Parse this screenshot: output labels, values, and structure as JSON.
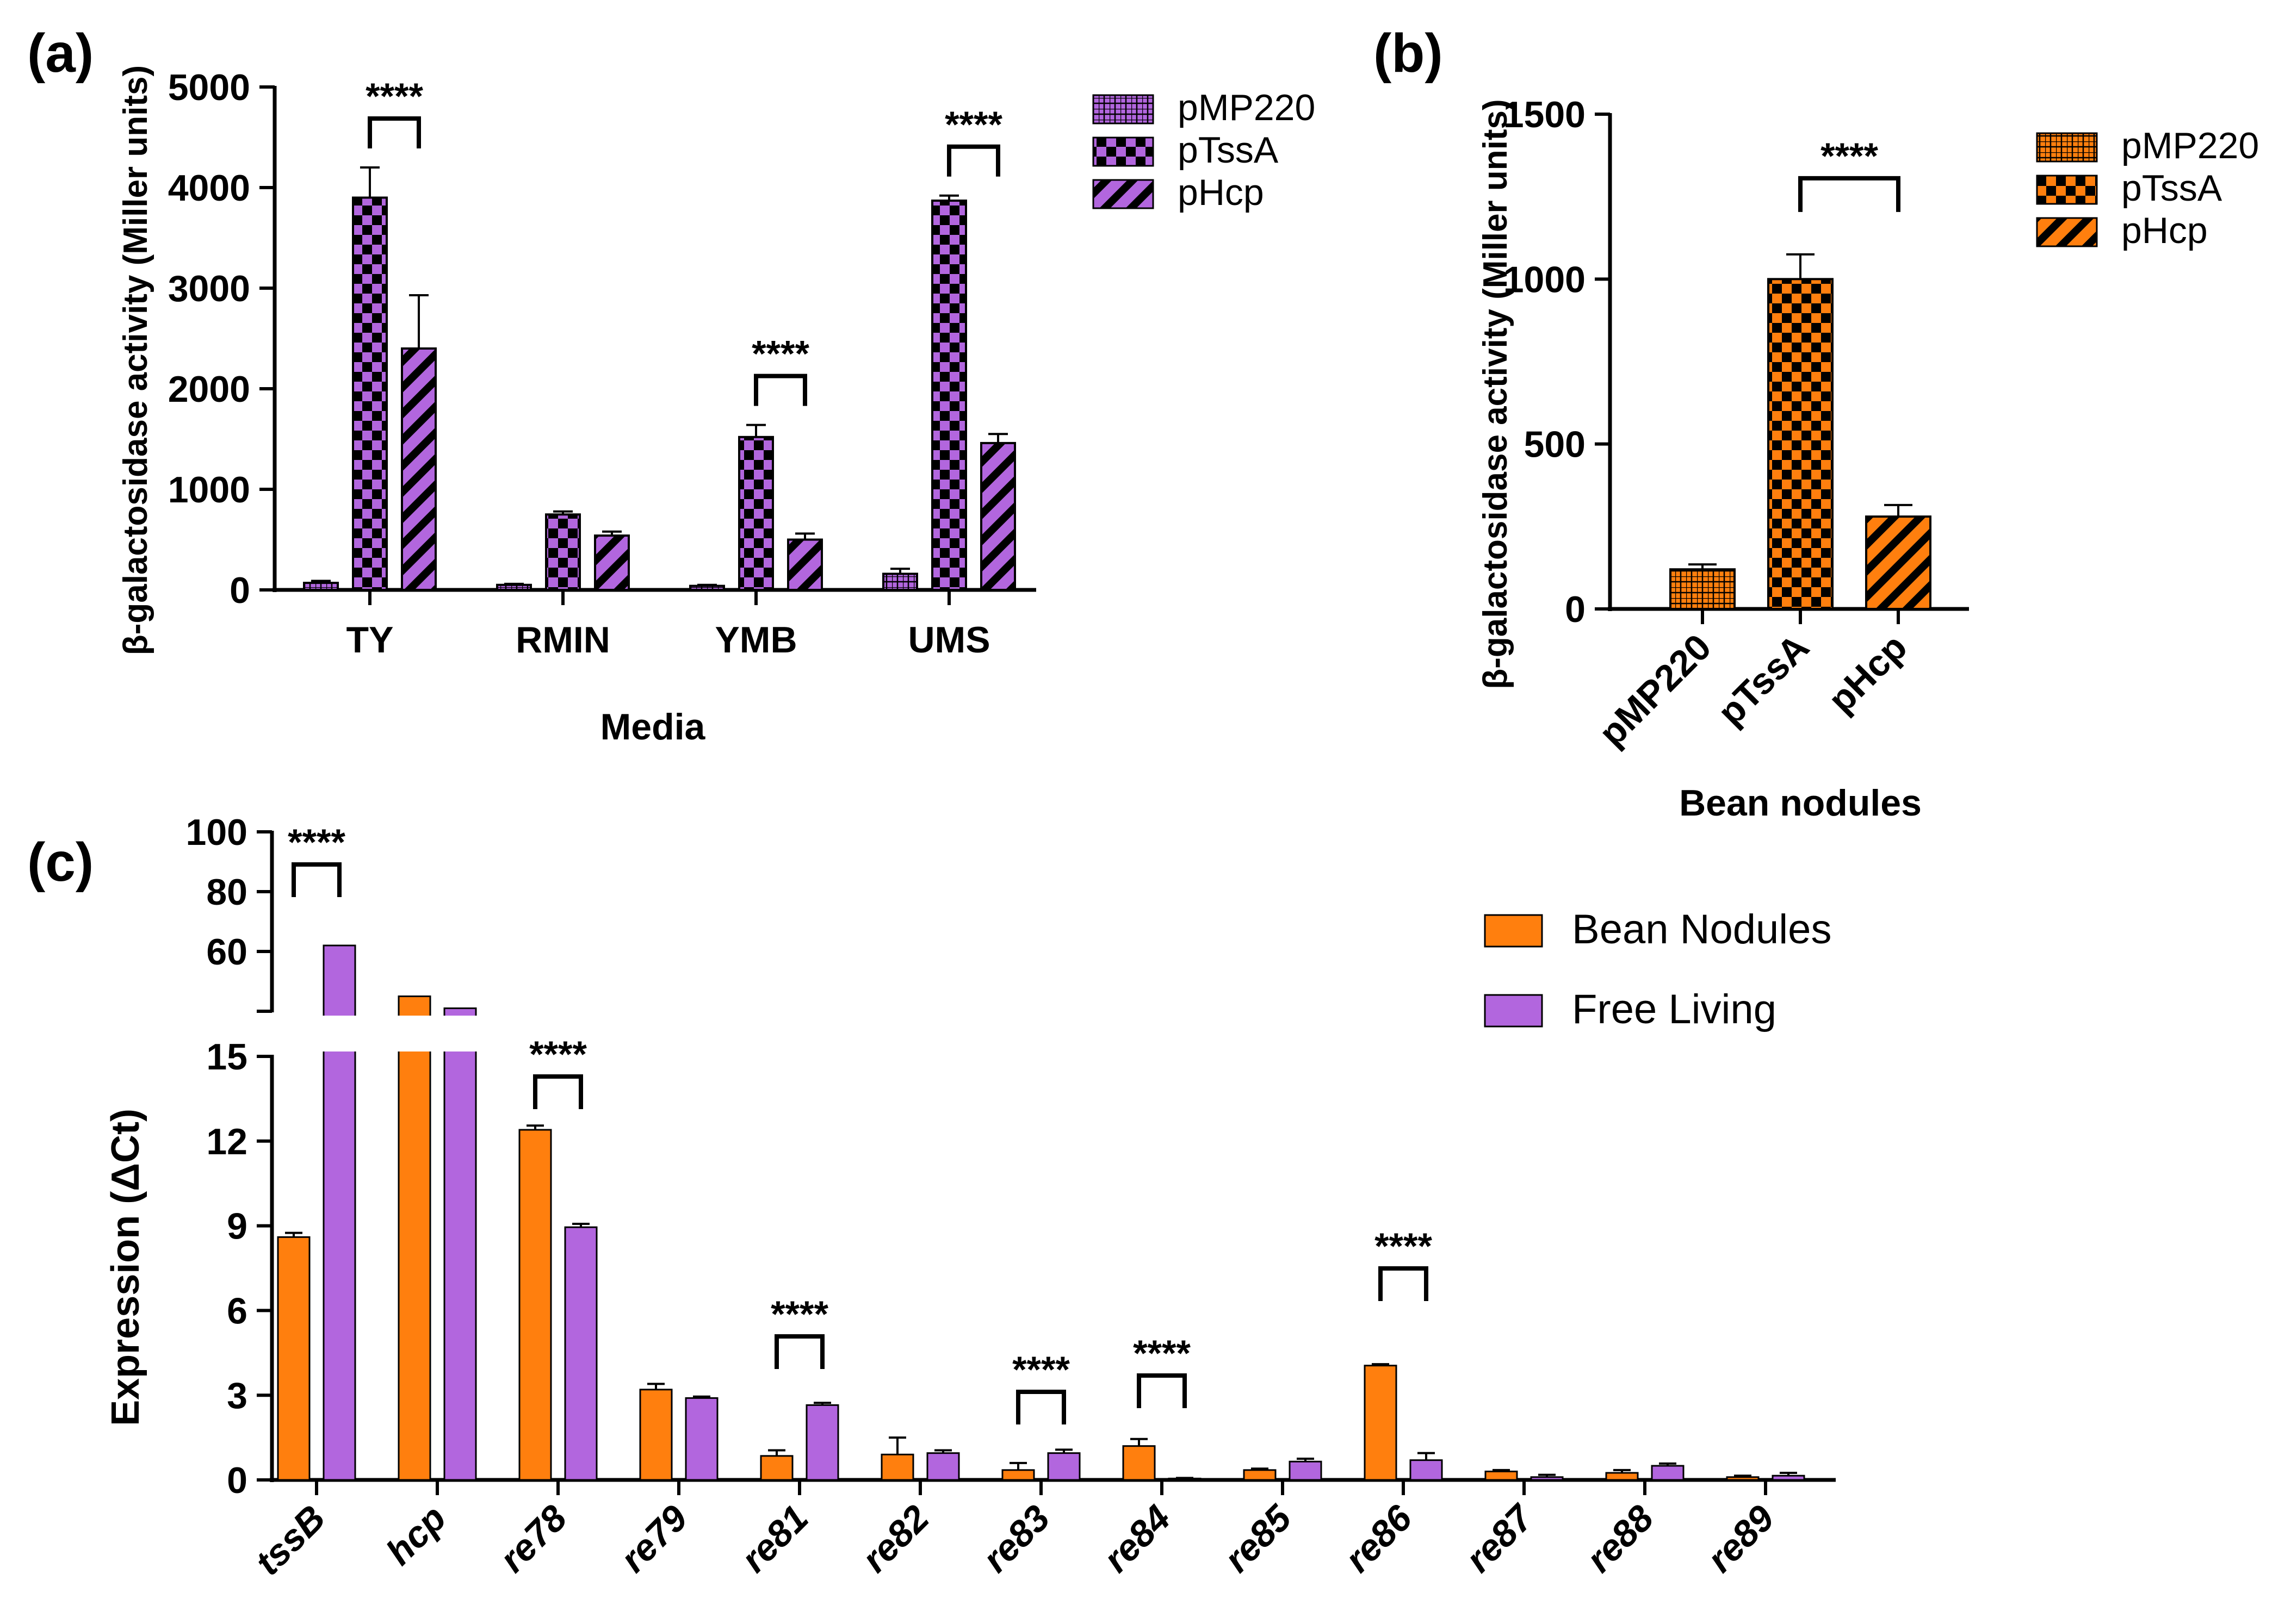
{
  "colors": {
    "purple": "#B266DE",
    "orange": "#FF7F0E",
    "axis": "#000000",
    "errorbar": "#000000"
  },
  "chart_data": [
    {
      "panel_label": "(a)",
      "type": "bar",
      "title": "",
      "xlabel": "Media",
      "ylabel": "β-galactosidase activity (Miller units)",
      "ylim": [
        0,
        5000
      ],
      "yticks": [
        "0",
        "1000",
        "2000",
        "3000",
        "4000",
        "5000"
      ],
      "yticks_values": [
        0,
        1000,
        2000,
        3000,
        4000,
        5000
      ],
      "categories": [
        "TY",
        "RMIN",
        "YMB",
        "UMS"
      ],
      "series": [
        {
          "name": "pMP220",
          "pattern": "grid",
          "values": [
            70,
            50,
            40,
            160
          ],
          "errors": [
            20,
            10,
            10,
            50
          ]
        },
        {
          "name": "pTssA",
          "pattern": "checker",
          "values": [
            3900,
            750,
            1520,
            3870
          ],
          "errors": [
            300,
            30,
            120,
            50
          ]
        },
        {
          "name": "pHcp",
          "pattern": "diagonal",
          "values": [
            2400,
            540,
            500,
            1460
          ],
          "errors": [
            530,
            40,
            60,
            90
          ]
        }
      ],
      "significance": [
        {
          "category": "TY",
          "between": [
            "pTssA",
            "pHcp"
          ],
          "label": "****"
        },
        {
          "category": "YMB",
          "between": [
            "pTssA",
            "pHcp"
          ],
          "label": "****"
        },
        {
          "category": "UMS",
          "between": [
            "pTssA",
            "pHcp"
          ],
          "label": "****"
        }
      ],
      "legend": [
        "pMP220",
        "pTssA",
        "pHcp"
      ],
      "legend_position": "right"
    },
    {
      "panel_label": "(b)",
      "type": "bar",
      "title": "",
      "xlabel": "Bean nodules",
      "ylabel": "β-galactosidase activity (Miller units)",
      "ylim": [
        0,
        1500
      ],
      "yticks": [
        "0",
        "500",
        "1000",
        "1500"
      ],
      "yticks_values": [
        0,
        500,
        1000,
        1500
      ],
      "categories": [
        "pMP220",
        "pTssA",
        "pHcp"
      ],
      "series": [
        {
          "name": "Bean nodules",
          "values": [
            120,
            1000,
            280
          ],
          "errors": [
            15,
            75,
            35
          ],
          "patterns": [
            "grid",
            "checker",
            "diagonal"
          ]
        }
      ],
      "significance": [
        {
          "between": [
            "pTssA",
            "pHcp"
          ],
          "label": "****"
        }
      ],
      "legend": [
        "pMP220",
        "pTssA",
        "pHcp"
      ],
      "legend_position": "right"
    },
    {
      "panel_label": "(c)",
      "type": "bar",
      "title": "",
      "xlabel": "",
      "ylabel": "Expression (ΔCt)",
      "y_axis_break": {
        "lower": [
          0,
          15
        ],
        "upper_ticks": [
          60,
          80,
          100
        ]
      },
      "yticks_lower": [
        "0",
        "3",
        "6",
        "9",
        "12",
        "15"
      ],
      "yticks_lower_values": [
        0,
        3,
        6,
        9,
        12,
        15
      ],
      "yticks_upper": [
        "60",
        "80",
        "100"
      ],
      "yticks_upper_values": [
        60,
        80,
        100
      ],
      "categories": [
        "tssB",
        "hcp",
        "re78",
        "re79",
        "re81",
        "re82",
        "re83",
        "re84",
        "re85",
        "re86",
        "re87",
        "re88",
        "re89"
      ],
      "series": [
        {
          "name": "Bean Nodules",
          "color": "orange",
          "values": [
            8.6,
            45,
            12.4,
            3.2,
            0.85,
            0.9,
            0.35,
            1.2,
            0.35,
            4.05,
            0.3,
            0.25,
            0.1
          ],
          "errors": [
            0.15,
            0.3,
            0.15,
            0.2,
            0.2,
            0.6,
            0.25,
            0.25,
            0.05,
            0.05,
            0.05,
            0.1,
            0.05
          ]
        },
        {
          "name": "Free Living",
          "color": "purple",
          "values": [
            62,
            41,
            8.95,
            2.9,
            2.65,
            0.95,
            0.95,
            0.05,
            0.65,
            0.7,
            0.1,
            0.5,
            0.15
          ],
          "errors": [
            0.5,
            0.3,
            0.12,
            0.05,
            0.08,
            0.1,
            0.12,
            0.02,
            0.1,
            0.25,
            0.08,
            0.08,
            0.1
          ]
        }
      ],
      "significance": [
        {
          "category": "tssB",
          "label": "****"
        },
        {
          "category": "re78",
          "label": "****"
        },
        {
          "category": "re81",
          "label": "****"
        },
        {
          "category": "re83",
          "label": "****"
        },
        {
          "category": "re84",
          "label": "****"
        },
        {
          "category": "re86",
          "label": "****"
        }
      ],
      "legend": [
        "Bean Nodules",
        "Free Living"
      ],
      "legend_position": "top-right"
    }
  ]
}
